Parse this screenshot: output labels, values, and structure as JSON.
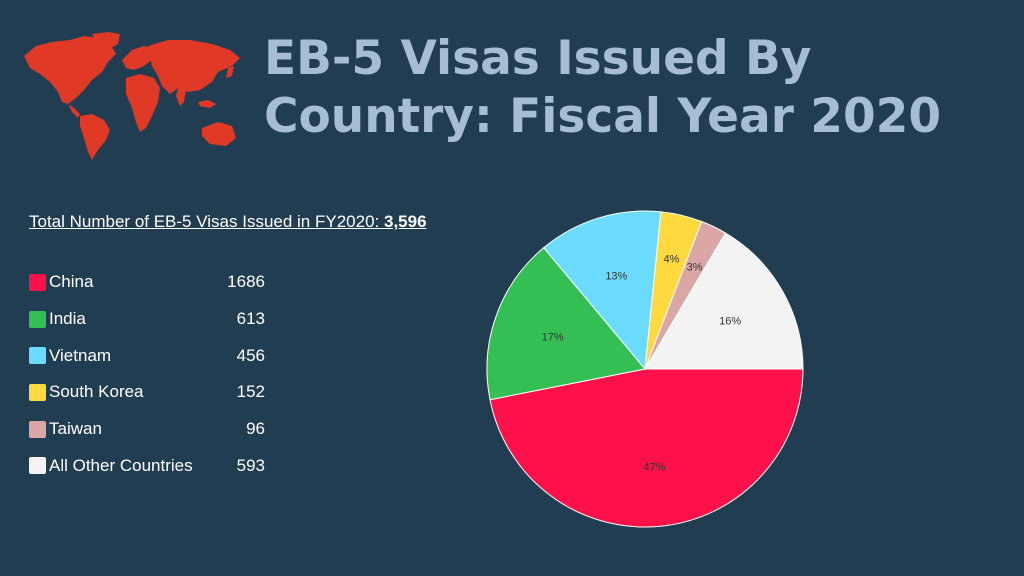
{
  "header": {
    "title": "EB-5 Visas Issued By Country: Fiscal Year 2020"
  },
  "icons": {
    "world_map": "world-map-icon",
    "map_color": "#e03a26"
  },
  "summary": {
    "label": "Total Number of EB-5 Visas Issued in FY2020:",
    "total": "3,596"
  },
  "chart_data": {
    "type": "pie",
    "title": "EB-5 Visas Issued By Country: Fiscal Year 2020",
    "total": 3596,
    "legend_position": "left",
    "start_angle_deg": 90,
    "direction": "clockwise",
    "categories": [
      "China",
      "India",
      "Vietnam",
      "South Korea",
      "Taiwan",
      "All Other Countries"
    ],
    "values": [
      1686,
      613,
      456,
      152,
      96,
      593
    ],
    "value_labels": [
      "1686",
      "613",
      "456",
      "152",
      "96",
      "593"
    ],
    "percent_labels": [
      "47%",
      "17%",
      "13%",
      "4%",
      "3%",
      "16%"
    ],
    "colors": [
      "#ff1149",
      "#34bf55",
      "#6bdcff",
      "#ffd93d",
      "#dba6a6",
      "#f3f3f3"
    ]
  }
}
